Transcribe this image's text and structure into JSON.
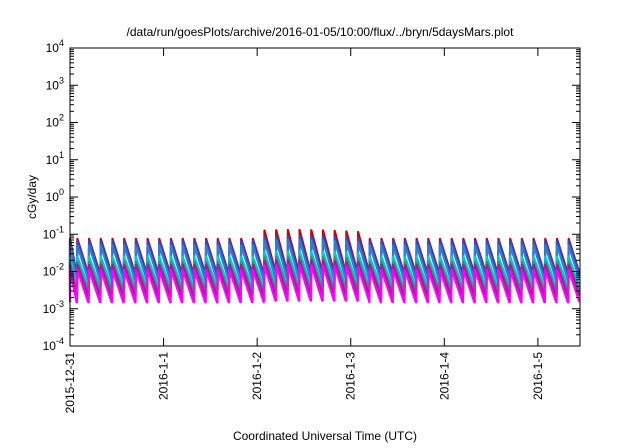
{
  "chart_data": {
    "type": "line",
    "title": "/data/run/goesPlots/archive/2016-01-05/10:00/flux/../bryn/5daysMars.plot",
    "xlabel": "Coordinated Universal Time (UTC)",
    "ylabel": "cGy/day",
    "y_scale": "log",
    "ylim": [
      0.0001,
      10000
    ],
    "xlim_days": [
      0,
      5.45
    ],
    "x_ticks": [
      {
        "day": 0,
        "label": "2015-12-31"
      },
      {
        "day": 1,
        "label": "2016-1-1"
      },
      {
        "day": 2,
        "label": "2016-1-2"
      },
      {
        "day": 3,
        "label": "2016-1-3"
      },
      {
        "day": 4,
        "label": "2016-1-4"
      },
      {
        "day": 5,
        "label": "2016-1-5"
      }
    ],
    "y_ticks": [
      {
        "exp": "-4",
        "value": 0.0001
      },
      {
        "exp": "-3",
        "value": 0.001
      },
      {
        "exp": "-2",
        "value": 0.01
      },
      {
        "exp": "-1",
        "value": 0.1
      },
      {
        "exp": "0",
        "value": 1
      },
      {
        "exp": "1",
        "value": 10
      },
      {
        "exp": "2",
        "value": 100
      },
      {
        "exp": "3",
        "value": 1000
      },
      {
        "exp": "4",
        "value": 10000
      }
    ],
    "tick_base": "10",
    "grid": false,
    "legend": "none",
    "cycles_per_day": 8,
    "series": [
      {
        "color": "#cc0000",
        "peak": 0.075,
        "trough": 0.009,
        "enhanced_peak": 0.13
      },
      {
        "color": "#1f4fd8",
        "peak": 0.065,
        "trough": 0.008,
        "enhanced_peak": 0.09
      },
      {
        "color": "#2f7fd0",
        "peak": 0.05,
        "trough": 0.006,
        "enhanced_peak": 0.07
      },
      {
        "color": "#00c8d8",
        "peak": 0.025,
        "trough": 0.004,
        "enhanced_peak": 0.035
      },
      {
        "color": "#3a8a8a",
        "peak": 0.018,
        "trough": 0.003,
        "enhanced_peak": 0.025
      },
      {
        "color": "#a0208a",
        "peak": 0.015,
        "trough": 0.0022,
        "enhanced_peak": 0.02
      },
      {
        "color": "#ff00ff",
        "peak": 0.011,
        "trough": 0.0015,
        "enhanced_peak": 0.015
      }
    ]
  }
}
